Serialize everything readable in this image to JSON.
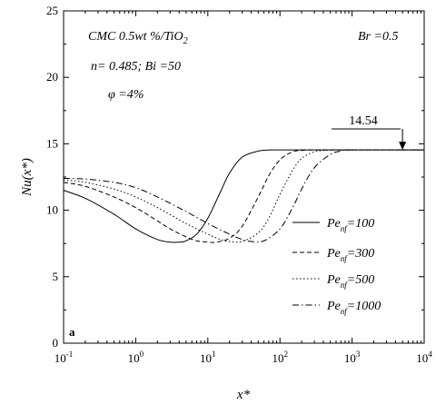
{
  "chart_data": {
    "type": "line",
    "title": "",
    "xlabel": "x*",
    "ylabel": "Nu(x*)",
    "x_scale": "log",
    "xlim": [
      0.1,
      10000
    ],
    "ylim": [
      0,
      25
    ],
    "grid": false,
    "legend_position": "center-right",
    "x_ticks": [
      0.1,
      1,
      10,
      100,
      1000,
      10000
    ],
    "x_tick_labels": [
      {
        "base": "10",
        "exp": "-1"
      },
      {
        "base": "10",
        "exp": "0"
      },
      {
        "base": "10",
        "exp": "1"
      },
      {
        "base": "10",
        "exp": "2"
      },
      {
        "base": "10",
        "exp": "3"
      },
      {
        "base": "10",
        "exp": "4"
      }
    ],
    "y_ticks": [
      0,
      5,
      10,
      15,
      20,
      25
    ],
    "y_tick_labels": [
      "0",
      "5",
      "10",
      "15",
      "20",
      "25"
    ],
    "annotations": {
      "material": "CMC 0.5wt %/TiO",
      "material_sub": "2",
      "params": "n= 0.485; Bi =50",
      "phi": "φ =4%",
      "br": "Br =0.5",
      "limit_label": "14.54",
      "limit_value": 14.54,
      "arrow_x": 5000,
      "panel_label": "a"
    },
    "series": [
      {
        "name": "Pe_nf=100",
        "legend_main": "Pe",
        "legend_sub": "nf",
        "legend_value": "=100",
        "dash": "solid",
        "x": [
          0.1,
          0.2,
          0.5,
          1,
          2,
          3,
          4,
          5,
          7,
          10,
          15,
          20,
          30,
          50,
          70,
          100,
          1000,
          10000
        ],
        "y": [
          11.5,
          10.9,
          9.7,
          8.6,
          7.8,
          7.6,
          7.6,
          7.7,
          8.2,
          9.4,
          11.4,
          12.8,
          14.0,
          14.45,
          14.53,
          14.54,
          14.54,
          14.54
        ]
      },
      {
        "name": "Pe_nf=300",
        "legend_main": "Pe",
        "legend_sub": "nf",
        "legend_value": "=300",
        "dash": "dashed",
        "x": [
          0.1,
          0.2,
          0.5,
          1,
          2,
          3,
          5,
          7,
          10,
          13,
          20,
          30,
          50,
          70,
          100,
          150,
          200,
          300,
          1000,
          10000
        ],
        "y": [
          12.1,
          11.8,
          11.0,
          10.2,
          9.2,
          8.6,
          8.0,
          7.7,
          7.6,
          7.6,
          7.9,
          8.8,
          11.0,
          12.6,
          13.8,
          14.4,
          14.5,
          14.54,
          14.54,
          14.54
        ]
      },
      {
        "name": "Pe_nf=500",
        "legend_main": "Pe",
        "legend_sub": "nf",
        "legend_value": "=500",
        "dash": "dotted",
        "x": [
          0.1,
          0.2,
          0.5,
          1,
          2,
          5,
          10,
          15,
          20,
          30,
          50,
          70,
          100,
          150,
          200,
          300,
          500,
          1000,
          10000
        ],
        "y": [
          12.3,
          12.1,
          11.6,
          11.0,
          10.2,
          9.0,
          8.2,
          7.8,
          7.65,
          7.65,
          8.3,
          9.4,
          11.2,
          13.0,
          13.9,
          14.4,
          14.53,
          14.54,
          14.54
        ]
      },
      {
        "name": "Pe_nf=1000",
        "legend_main": "Pe",
        "legend_sub": "nf",
        "legend_value": "=1000",
        "dash": "dashdot",
        "x": [
          0.1,
          0.2,
          0.5,
          1,
          2,
          5,
          10,
          20,
          30,
          40,
          60,
          100,
          150,
          200,
          300,
          500,
          700,
          1000,
          10000
        ],
        "y": [
          12.4,
          12.35,
          12.1,
          11.7,
          11.0,
          9.9,
          9.0,
          8.2,
          7.8,
          7.65,
          7.7,
          8.6,
          10.2,
          11.6,
          13.2,
          14.2,
          14.45,
          14.54,
          14.54
        ]
      }
    ]
  }
}
